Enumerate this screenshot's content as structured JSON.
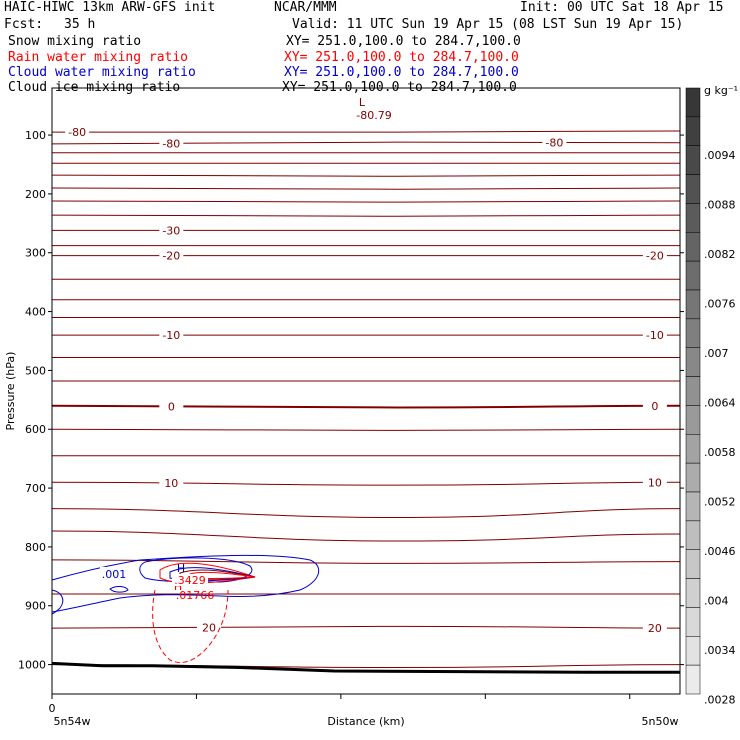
{
  "header": {
    "model": "HAIC-HIWC 13km ARW-GFS init",
    "org": "NCAR/MMM",
    "init": "Init: 00 UTC Sat 18 Apr 15",
    "fcst_label": "Fcst:",
    "fcst_value": "35 h",
    "valid": "Valid: 11 UTC Sun 19 Apr 15 (08 LST Sun 19 Apr 15)"
  },
  "fields": [
    {
      "name": "Snow mixing ratio",
      "xy": "XY= 251.0,100.0 to 284.7,100.0",
      "color": "#000000"
    },
    {
      "name": "Rain water mixing ratio",
      "xy": "XY= 251.0,100.0 to 284.7,100.0",
      "color": "#ff0000"
    },
    {
      "name": "Cloud water mixing ratio",
      "xy": "XY= 251.0,100.0 to 284.7,100.0",
      "color": "#0000cc"
    },
    {
      "name": "Cloud ice mixing ratio",
      "xy": "XY= 251.0,100.0 to 284.7,100.0",
      "color": "#000000"
    }
  ],
  "colors": {
    "temperature": "#800000",
    "rain": "#ff0000",
    "cloud_water": "#0000cc",
    "terrain": "#000000"
  },
  "chart_data": {
    "type": "line",
    "ylabel": "Pressure (hPa)",
    "xlabel": "Distance (km)",
    "ylim": [
      1050,
      20
    ],
    "y_ticks": [
      "100",
      "200",
      "300",
      "400",
      "500",
      "600",
      "700",
      "800",
      "900",
      "1000"
    ],
    "x_tick_left": "0",
    "x_endpoint_left": "5n54w",
    "x_endpoint_right": "5n50w",
    "temperature_contours": [
      {
        "p_left": 95,
        "p_mid": 95,
        "p_right": 93,
        "label": "-80",
        "label_at": [
          0.04
        ]
      },
      {
        "p_left": 115,
        "p_mid": 112,
        "p_right": 113,
        "label": "-80",
        "label_at": [
          0.19,
          0.8
        ]
      },
      {
        "p_left": 130,
        "p_mid": 130,
        "p_right": 130
      },
      {
        "p_left": 148,
        "p_mid": 148,
        "p_right": 148
      },
      {
        "p_left": 168,
        "p_mid": 170,
        "p_right": 168
      },
      {
        "p_left": 190,
        "p_mid": 192,
        "p_right": 190
      },
      {
        "p_left": 212,
        "p_mid": 214,
        "p_right": 212
      },
      {
        "p_left": 236,
        "p_mid": 238,
        "p_right": 236
      },
      {
        "p_left": 262,
        "p_mid": 262,
        "p_right": 262,
        "label": "-30",
        "label_at": [
          0.19
        ]
      },
      {
        "p_left": 288,
        "p_mid": 288,
        "p_right": 288
      },
      {
        "p_left": 305,
        "p_mid": 305,
        "p_right": 305,
        "label": "-20",
        "label_at": [
          0.19,
          0.96
        ]
      },
      {
        "p_left": 345,
        "p_mid": 345,
        "p_right": 345
      },
      {
        "p_left": 380,
        "p_mid": 380,
        "p_right": 380
      },
      {
        "p_left": 410,
        "p_mid": 410,
        "p_right": 410
      },
      {
        "p_left": 440,
        "p_mid": 440,
        "p_right": 440,
        "label": "-10",
        "label_at": [
          0.19,
          0.96
        ]
      },
      {
        "p_left": 478,
        "p_mid": 478,
        "p_right": 478
      },
      {
        "p_left": 518,
        "p_mid": 518,
        "p_right": 518
      },
      {
        "p_left": 560,
        "p_mid": 563,
        "p_right": 560,
        "label": "0",
        "label_at": [
          0.19,
          0.96
        ],
        "bold": true
      },
      {
        "p_left": 600,
        "p_mid": 602,
        "p_right": 600
      },
      {
        "p_left": 645,
        "p_mid": 645,
        "p_right": 645
      },
      {
        "p_left": 690,
        "p_mid": 695,
        "p_right": 690,
        "label": "10",
        "label_at": [
          0.19,
          0.96
        ]
      },
      {
        "p_left": 735,
        "p_mid": 750,
        "p_right": 735
      },
      {
        "p_left": 773,
        "p_mid": 790,
        "p_right": 778
      },
      {
        "p_left": 822,
        "p_mid": 828,
        "p_right": 825
      },
      {
        "p_left": 880,
        "p_mid": 880,
        "p_right": 880
      },
      {
        "p_left": 938,
        "p_mid": 935,
        "p_right": 938,
        "label": "20",
        "label_at": [
          0.25,
          0.96
        ]
      },
      {
        "p_left": 1000,
        "p_mid": 1005,
        "p_right": 1000
      }
    ],
    "terrain": [
      [
        0.0,
        998
      ],
      [
        0.08,
        1002
      ],
      [
        0.16,
        1002
      ],
      [
        0.3,
        1005
      ],
      [
        0.45,
        1011
      ],
      [
        0.65,
        1012
      ],
      [
        0.85,
        1013
      ],
      [
        1.0,
        1013
      ]
    ],
    "cloud_water_label": ".001",
    "rain_labels": [
      ".3429",
      ".01766"
    ],
    "min_label": "-80.79",
    "marker_low": "L",
    "marker_high": "H",
    "colorbar_unit": "g kg⁻¹",
    "colorbar_ticks": [
      ".0094",
      ".0088",
      ".0082",
      ".0076",
      ".007",
      ".0064",
      ".0058",
      ".0052",
      ".0046",
      ".004",
      ".0034",
      ".0028"
    ]
  }
}
